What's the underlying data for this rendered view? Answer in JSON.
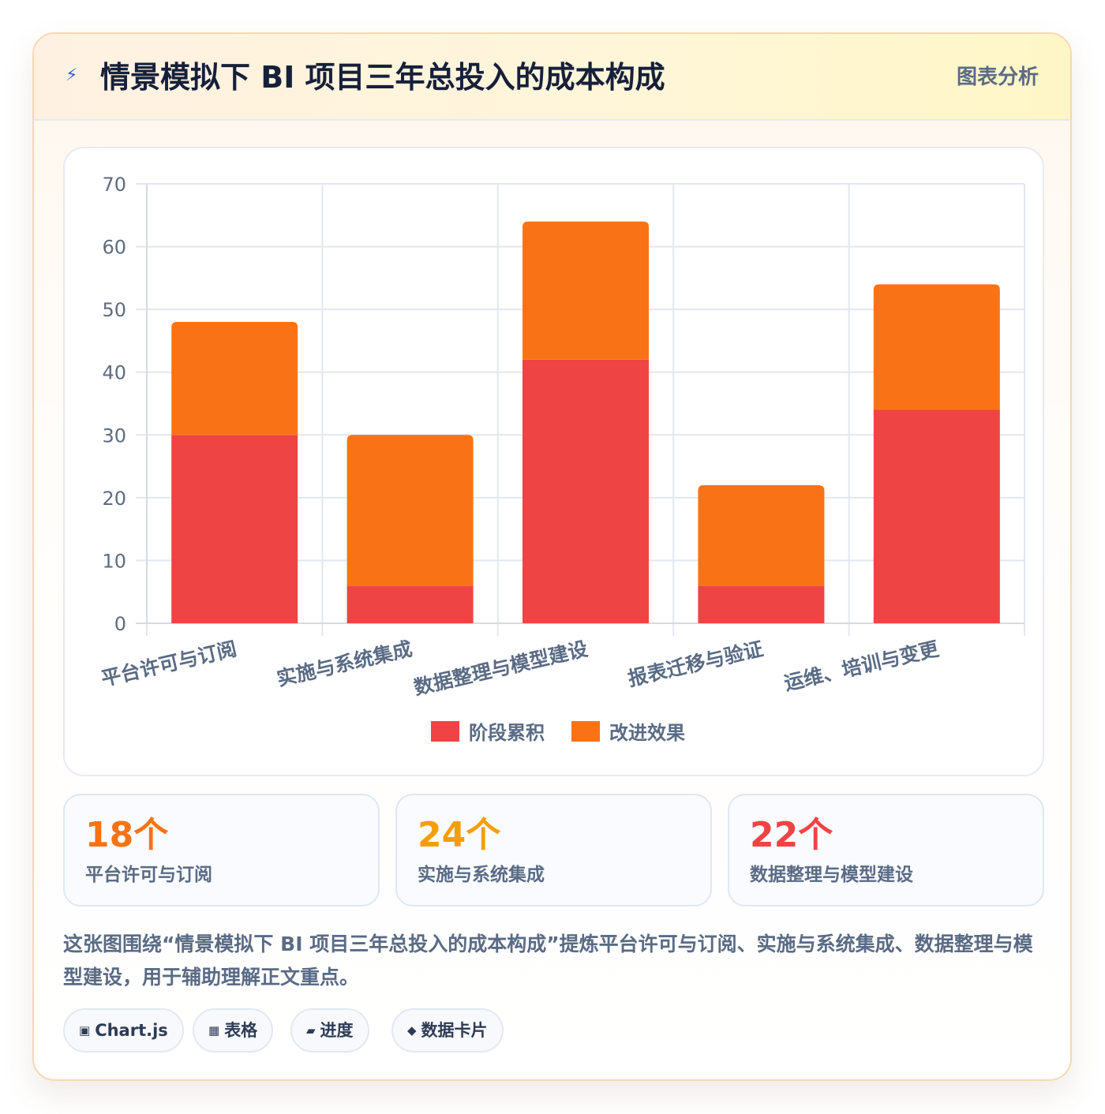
{
  "header": {
    "icon": "lightning-icon",
    "title": "情景模拟下 BI 项目三年总投入的成本构成",
    "tag": "图表分析"
  },
  "colors": {
    "series1": "#ef4444",
    "series2": "#f97316",
    "stat1": "#f97316",
    "stat2": "#f59e0b",
    "stat3": "#ef4444"
  },
  "chart_data": {
    "type": "bar",
    "stacked": true,
    "categories": [
      "平台许可与订阅",
      "实施与系统集成",
      "数据整理与模型建设",
      "报表迁移与验证",
      "运维、培训与变更"
    ],
    "series": [
      {
        "name": "阶段累积",
        "values": [
          30,
          6,
          42,
          6,
          34
        ],
        "color": "#ef4444"
      },
      {
        "name": "改进效果",
        "values": [
          18,
          24,
          22,
          16,
          20
        ],
        "color": "#f97316"
      }
    ],
    "ylim": [
      0,
      70
    ],
    "yticks": [
      0,
      10,
      20,
      30,
      40,
      50,
      60,
      70
    ],
    "grid": true,
    "legend": "bottom"
  },
  "stats": [
    {
      "value": "18个",
      "label": "平台许可与订阅"
    },
    {
      "value": "24个",
      "label": "实施与系统集成"
    },
    {
      "value": "22个",
      "label": "数据整理与模型建设"
    }
  ],
  "description": "这张图围绕“情景模拟下 BI 项目三年总投入的成本构成”提炼平台许可与订阅、实施与系统集成、数据整理与模型建设，用于辅助理解正文重点。",
  "chips": [
    {
      "icon": "square-icon",
      "label": "Chart.js"
    },
    {
      "icon": "table-icon",
      "label": "表格"
    },
    {
      "icon": "progress-icon",
      "label": "进度"
    },
    {
      "icon": "diamond-icon",
      "label": "数据卡片"
    }
  ]
}
